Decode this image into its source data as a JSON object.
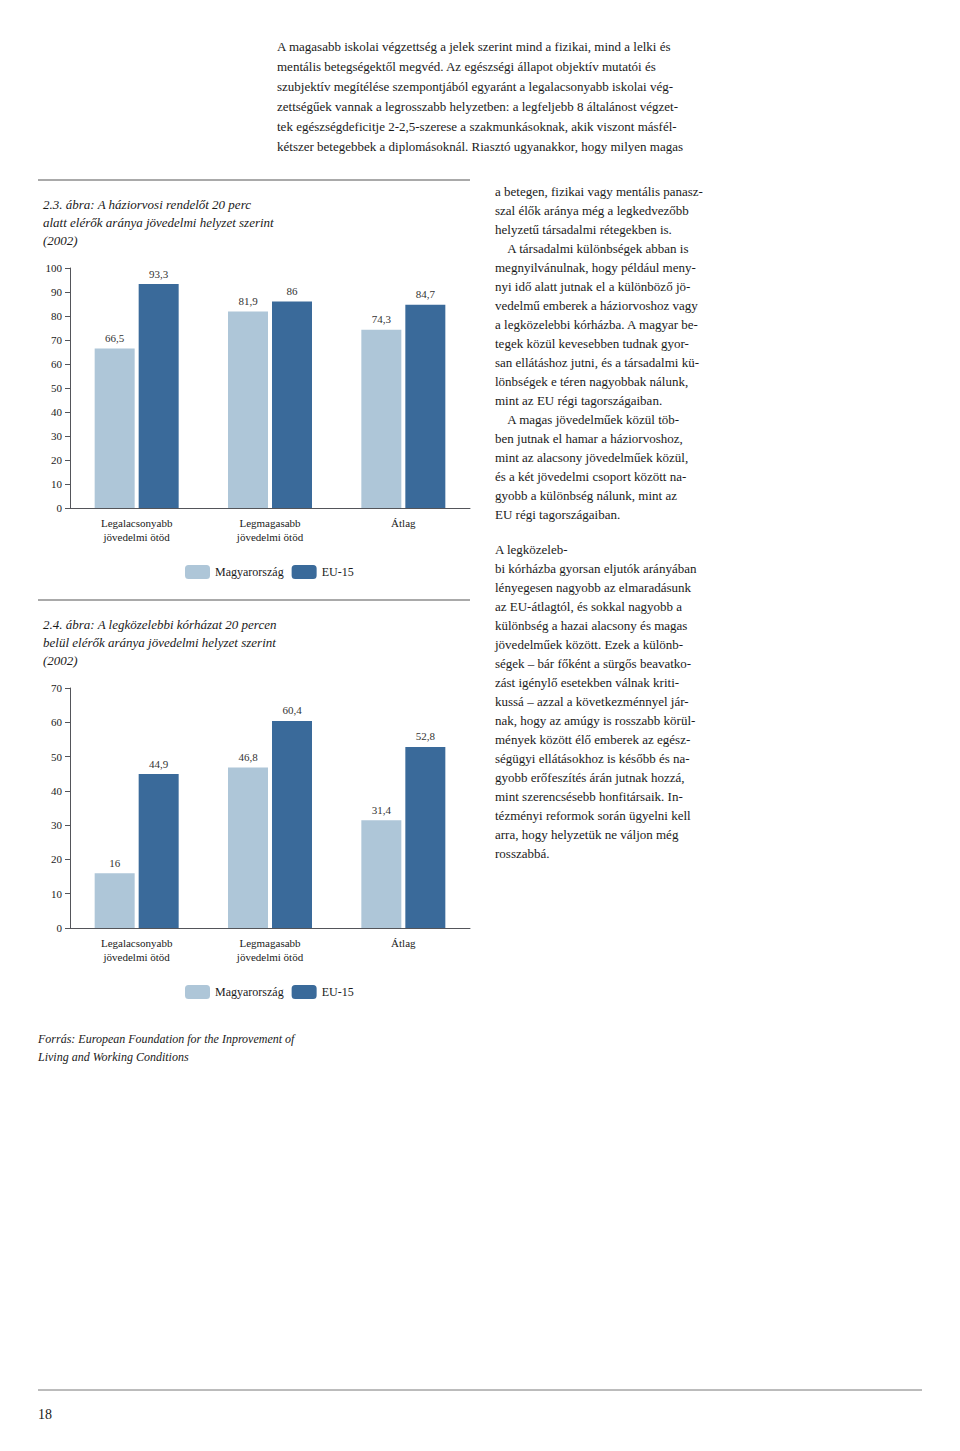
{
  "chart_data": [
    {
      "type": "bar",
      "title": "2.3. ábra: A háziorvosi rendelőt 20 perc\nalatt elérők aránya jövedelmi helyzet szerint\n(2002)",
      "categories": [
        "Legalacsonyabb\njövedelmi ötöd",
        "Legmagasabb\njövedelmi ötöd",
        "Átlag"
      ],
      "series": [
        {
          "name": "Magyarország",
          "color": "#aec6d8",
          "values": [
            66.5,
            81.9,
            74.3
          ],
          "value_labels": [
            "66,5",
            "81,9",
            "74,3"
          ]
        },
        {
          "name": "EU-15",
          "color": "#3a6a9a",
          "values": [
            93.3,
            86.0,
            84.7
          ],
          "value_labels": [
            "93,3",
            "86",
            "84,7"
          ]
        }
      ],
      "ylim": [
        0,
        100
      ],
      "yticks": [
        0,
        10,
        20,
        30,
        40,
        50,
        60,
        70,
        80,
        90,
        100
      ],
      "grid": false,
      "legend": "bottom",
      "data_labels": true
    },
    {
      "type": "bar",
      "title": "2.4. ábra: A legközelebbi kórházat 20 percen\nbelül elérők aránya jövedelmi helyzet szerint\n(2002)",
      "categories": [
        "Legalacsonyabb\njövedelmi ötöd",
        "Legmagasabb\njövedelmi ötöd",
        "Átlag"
      ],
      "series": [
        {
          "name": "Magyarország",
          "color": "#aec6d8",
          "values": [
            16.0,
            46.8,
            31.4
          ],
          "value_labels": [
            "16",
            "46,8",
            "31,4"
          ]
        },
        {
          "name": "EU-15",
          "color": "#3a6a9a",
          "values": [
            44.9,
            60.4,
            52.8
          ],
          "value_labels": [
            "44,9",
            "60,4",
            "52,8"
          ]
        }
      ],
      "ylim": [
        0,
        70
      ],
      "yticks": [
        0,
        10,
        20,
        30,
        40,
        50,
        60,
        70
      ],
      "grid": false,
      "legend": "bottom",
      "data_labels": true,
      "annotations": [
        "Forrás: European Foundation for the Inprovement of\nLiving and Working Conditions"
      ]
    }
  ],
  "annotations": [
    "A magasabb iskolai végzettség a jelek szerint mind a fizikai, mind a lelki és\nmentális betegségektől megvéd. Az egészségi állapot objektív mutatói és\nszubjektív megítélése szempontjából egyaránt a legalacsonyabb iskolai vég-\nzettségűek vannak a legrosszabb helyzetben: a legfeljebb 8 általánost végzet-\ntek egészségdeficitje 2-2,5-szerese a szakmunkásoknak, akik viszont másfél-\nkétszer betegebbek a diplomásoknál. Riasztó ugyanakkor, hogy milyen magas",
    "a betegen, fizikai vagy mentális panasz-\nszal élők aránya még a legkedvezőbb\nhelyzetű társadalmi rétegekben is.\n    A társadalmi különbségek abban is\nmegnyilvánulnak, hogy például meny-\nnyi idő alatt jutnak el a különböző jö-\nvedelmű emberek a háziorvoshoz vagy\na legközelebbi kórházba. A magyar be-\ntegek közül kevesebben tudnak gyor-\nsan ellátáshoz jutni, és a társadalmi kü-\nlönbségek e téren nagyobbak nálunk,\nmint az EU régi tagországaiban.\n    A magas jövedelműek közül töb-\nben jutnak el hamar a háziorvoshoz,\nmint az alacsony jövedelműek közül,\nés a két jövedelmi csoport között na-\ngyobb a különbség nálunk, mint az\nEU régi tagországaiban.",
    "A legközeleb-\nbi kórházba gyorsan eljutók arányában\nlényegesen nagyobb az elmaradásunk\naz EU-átlagtól, és sokkal nagyobb a\nkülönbség a hazai alacsony és magas\njövedelműek között. Ezek a különb-\nségek – bár főként a sürgős beavatko-\nzást igénylő esetekben válnak kriti-\nkussá – azzal a következménnyel jár-\nnak, hogy az amúgy is rosszabb körül-\nmények között élő emberek az egész-\nségügyi ellátásokhoz is később és na-\ngyobb erőfeszítés árán jutnak hozzá,\nmint szerencsésebb honfitársaik. In-\ntézményi reformok során ügyelni kell\narra, hogy helyzetük ne váljon még\nrosszabbá.",
    "18"
  ]
}
